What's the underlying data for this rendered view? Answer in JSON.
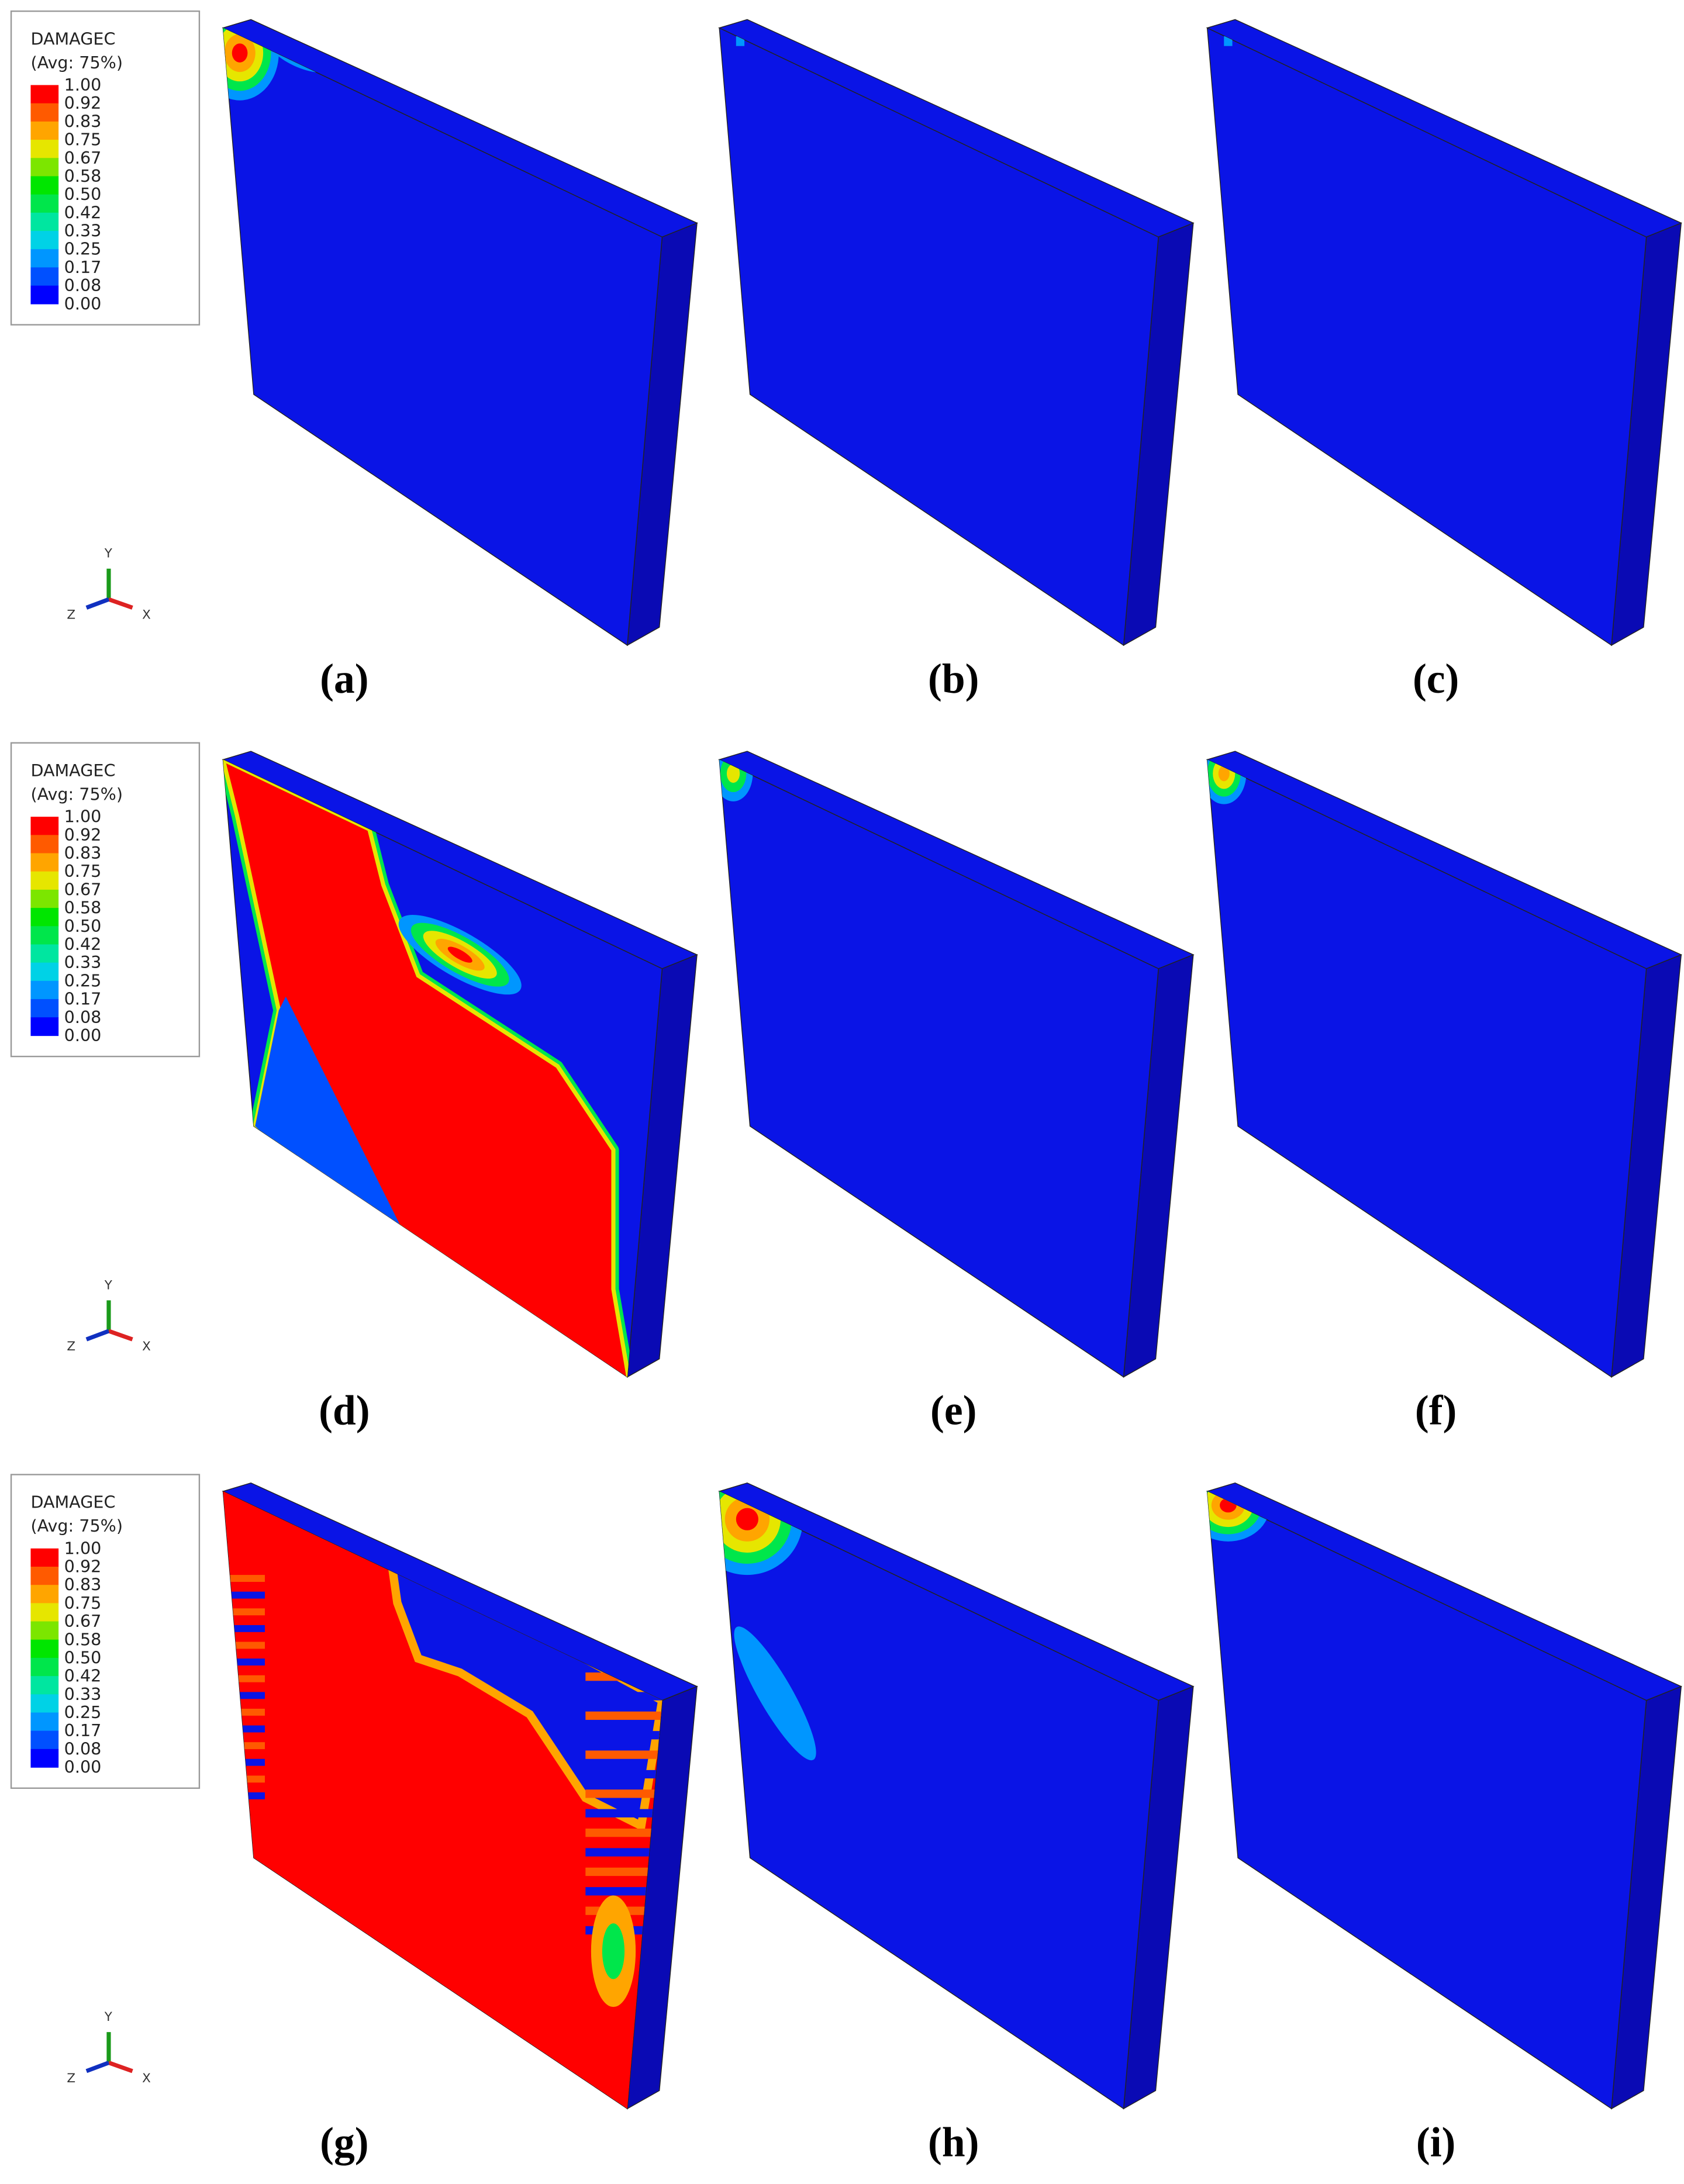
{
  "legends": [
    {
      "title": "DAMAGEC",
      "subtitle": "(Avg: 75%)",
      "levels": [
        "1.00",
        "0.92",
        "0.83",
        "0.75",
        "0.67",
        "0.58",
        "0.50",
        "0.42",
        "0.33",
        "0.25",
        "0.17",
        "0.08",
        "0.00"
      ]
    },
    {
      "title": "DAMAGEC",
      "subtitle": "(Avg: 75%)",
      "levels": [
        "1.00",
        "0.92",
        "0.83",
        "0.75",
        "0.67",
        "0.58",
        "0.50",
        "0.42",
        "0.33",
        "0.25",
        "0.17",
        "0.08",
        "0.00"
      ]
    },
    {
      "title": "DAMAGEC",
      "subtitle": "(Avg: 75%)",
      "levels": [
        "1.00",
        "0.92",
        "0.83",
        "0.75",
        "0.67",
        "0.58",
        "0.50",
        "0.42",
        "0.33",
        "0.25",
        "0.17",
        "0.08",
        "0.00"
      ]
    }
  ],
  "axis_triads": [
    {
      "y": "Y",
      "z": "Z",
      "x": "X"
    },
    {
      "y": "Y",
      "z": "Z",
      "x": "X"
    },
    {
      "y": "Y",
      "z": "Z",
      "x": "X"
    }
  ],
  "panels": [
    {
      "caption": "(a)"
    },
    {
      "caption": "(b)"
    },
    {
      "caption": "(c)"
    },
    {
      "caption": "(d)"
    },
    {
      "caption": "(e)"
    },
    {
      "caption": "(f)"
    },
    {
      "caption": "(g)"
    },
    {
      "caption": "(h)"
    },
    {
      "caption": "(i)"
    }
  ]
}
